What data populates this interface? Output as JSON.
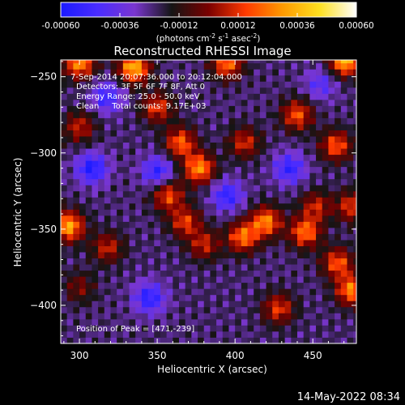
{
  "chart_data": {
    "type": "heatmap",
    "title": "Reconstructed RHESSI Image",
    "xlabel": "Heliocentric X (arcsec)",
    "ylabel": "Heliocentric Y (arcsec)",
    "xlim": [
      288,
      478
    ],
    "ylim": [
      -425,
      -239
    ],
    "xticks": [
      300,
      350,
      400,
      450
    ],
    "yticks": [
      -250,
      -300,
      -350,
      -400
    ],
    "colorbar": {
      "range": [
        -0.0006,
        0.0006
      ],
      "ticks": [
        "-0.00060",
        "-0.00036",
        "-0.00012",
        "0.00012",
        "0.00036",
        "0.00060"
      ],
      "unit_parts": [
        "(photons cm",
        "-2",
        " s",
        "-1",
        " asec",
        "-2",
        ")"
      ],
      "colors": [
        "#1a1aff",
        "#4a2cff",
        "#7a36cf",
        "#151515",
        "#7a0000",
        "#ff3a00",
        "#ff9a00",
        "#ffe020",
        "#ffffff"
      ]
    },
    "annotations": [
      "7-Sep-2014 20:07:36.000 to 20:12:04.000",
      "Detectors: 3F 5F 6F 7F 8F, Att 0",
      "Energy Range: 25.0 - 50.0 keV",
      "Clean     Total counts: 9.17E+03"
    ],
    "peak_label": "Position of Peak = [471,-239]",
    "peak": [
      471,
      -239
    ],
    "sources": [
      {
        "x": 300,
        "y": -241,
        "amp": 0.0005
      },
      {
        "x": 335,
        "y": -244,
        "amp": 0.00058
      },
      {
        "x": 395,
        "y": -241,
        "amp": 0.00045
      },
      {
        "x": 471,
        "y": -239,
        "amp": 0.0006
      },
      {
        "x": 300,
        "y": -283,
        "amp": 0.0003
      },
      {
        "x": 350,
        "y": -270,
        "amp": 0.00035
      },
      {
        "x": 365,
        "y": -293,
        "amp": 0.00042
      },
      {
        "x": 377,
        "y": -310,
        "amp": 0.0005
      },
      {
        "x": 406,
        "y": -293,
        "amp": 0.00032
      },
      {
        "x": 440,
        "y": -275,
        "amp": 0.0004
      },
      {
        "x": 465,
        "y": -295,
        "amp": 0.0004
      },
      {
        "x": 475,
        "y": -335,
        "amp": 0.00035
      },
      {
        "x": 293,
        "y": -348,
        "amp": 0.00055
      },
      {
        "x": 318,
        "y": -362,
        "amp": 0.0003
      },
      {
        "x": 357,
        "y": -328,
        "amp": 0.00038
      },
      {
        "x": 368,
        "y": -345,
        "amp": 0.00035
      },
      {
        "x": 380,
        "y": -360,
        "amp": 0.0003
      },
      {
        "x": 405,
        "y": -355,
        "amp": 0.00045
      },
      {
        "x": 420,
        "y": -345,
        "amp": 0.00048
      },
      {
        "x": 445,
        "y": -352,
        "amp": 0.00045
      },
      {
        "x": 452,
        "y": -335,
        "amp": 0.0003
      },
      {
        "x": 475,
        "y": -390,
        "amp": 0.00048
      },
      {
        "x": 466,
        "y": -372,
        "amp": 0.0004
      },
      {
        "x": 428,
        "y": -402,
        "amp": 0.00035
      },
      {
        "x": 300,
        "y": -388,
        "amp": 0.0002
      },
      {
        "x": 435,
        "y": -310,
        "amp": -0.0003
      },
      {
        "x": 308,
        "y": -310,
        "amp": -0.00035
      },
      {
        "x": 350,
        "y": -312,
        "amp": -0.0003
      },
      {
        "x": 395,
        "y": -328,
        "amp": -0.0003
      },
      {
        "x": 345,
        "y": -395,
        "amp": -0.00032
      },
      {
        "x": 318,
        "y": -263,
        "amp": -0.00028
      },
      {
        "x": 455,
        "y": -255,
        "amp": -0.0002
      }
    ]
  },
  "footer": {
    "timestamp": "14-May-2022 08:34"
  }
}
